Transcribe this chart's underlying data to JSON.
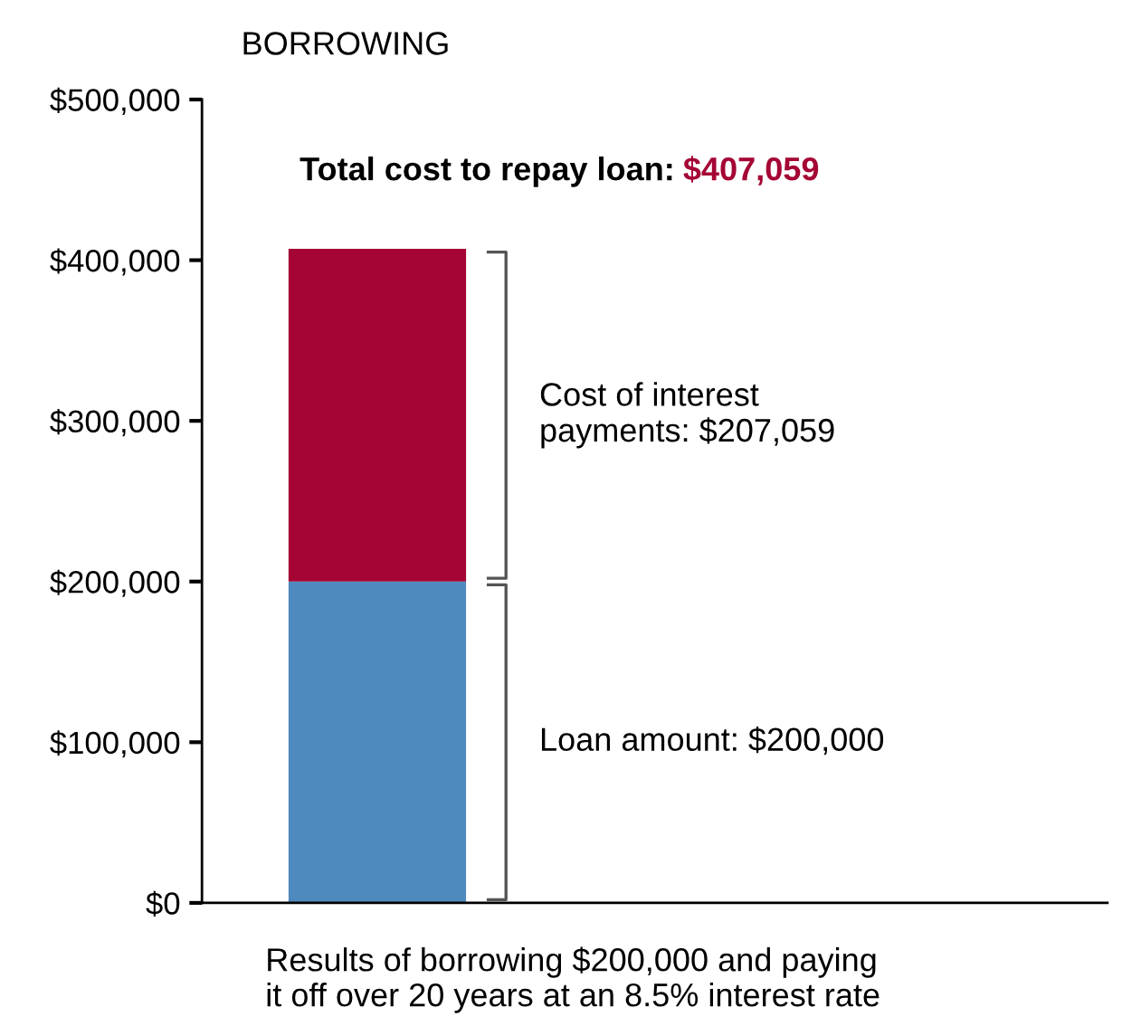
{
  "chart_data": {
    "type": "bar",
    "title": "BORROWING",
    "xlabel": "Results of borrowing $200,000 and paying\nit off over 20 years at an 8.5% interest rate",
    "categories": [
      null
    ],
    "stacked": true,
    "series": [
      {
        "color": "#4f8abf",
        "values": [
          200000
        ]
      },
      {
        "color": "#a50534",
        "values": [
          207059
        ]
      }
    ],
    "annotations": [
      "Loan amount: $200,000",
      "Cost of interest\npayments: $207,059"
    ],
    "totals": [
      "Total cost to repay loan: $407,059"
    ],
    "ylim": [
      0,
      500000
    ],
    "yticks": [
      {
        "value": 0,
        "label": "$0"
      },
      {
        "value": 100000,
        "label": "$100,000"
      },
      {
        "value": 200000,
        "label": "$200,000"
      },
      {
        "value": 300000,
        "label": "$300,000"
      },
      {
        "value": 400000,
        "label": "$400,000"
      },
      {
        "value": 500000,
        "label": "$500,000"
      }
    ],
    "grid": false,
    "legend": false
  }
}
